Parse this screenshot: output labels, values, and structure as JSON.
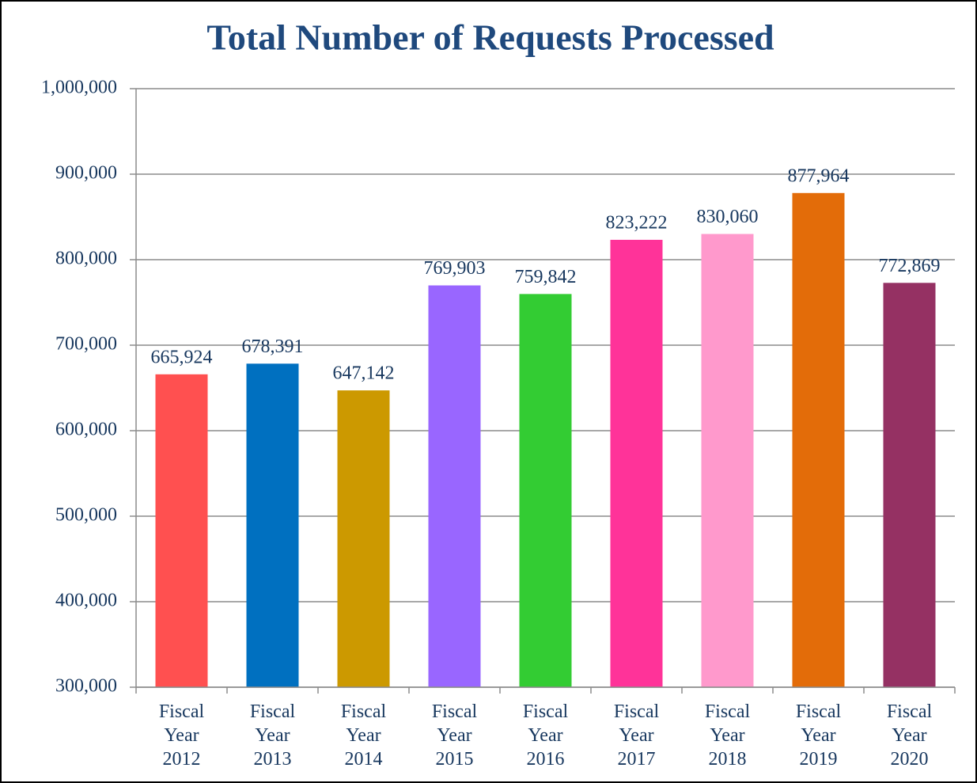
{
  "chart_data": {
    "type": "bar",
    "title": "Total Number of Requests Processed",
    "categories": [
      "Fiscal Year 2012",
      "Fiscal Year 2013",
      "Fiscal Year 2014",
      "Fiscal Year 2015",
      "Fiscal Year 2016",
      "Fiscal Year 2017",
      "Fiscal Year 2018",
      "Fiscal Year 2019",
      "Fiscal Year 2020"
    ],
    "values": [
      665924,
      678391,
      647142,
      769903,
      759842,
      823222,
      830060,
      877964,
      772869
    ],
    "value_labels": [
      "665,924",
      "678,391",
      "647,142",
      "769,903",
      "759,842",
      "823,222",
      "830,060",
      "877,964",
      "772,869"
    ],
    "colors": [
      "#ff5050",
      "#0070c0",
      "#cc9900",
      "#9966ff",
      "#33cc33",
      "#ff3399",
      "#ff99cc",
      "#e36c09",
      "#953163"
    ],
    "ylim": [
      300000,
      1000000
    ],
    "yticks": [
      {
        "value": 300000,
        "label": "300,000"
      },
      {
        "value": 400000,
        "label": "400,000"
      },
      {
        "value": 500000,
        "label": "500,000"
      },
      {
        "value": 600000,
        "label": "600,000"
      },
      {
        "value": 700000,
        "label": "700,000"
      },
      {
        "value": 800000,
        "label": "800,000"
      },
      {
        "value": 900000,
        "label": "900,000"
      },
      {
        "value": 1000000,
        "label": "1,000,000"
      }
    ],
    "grid": true
  }
}
